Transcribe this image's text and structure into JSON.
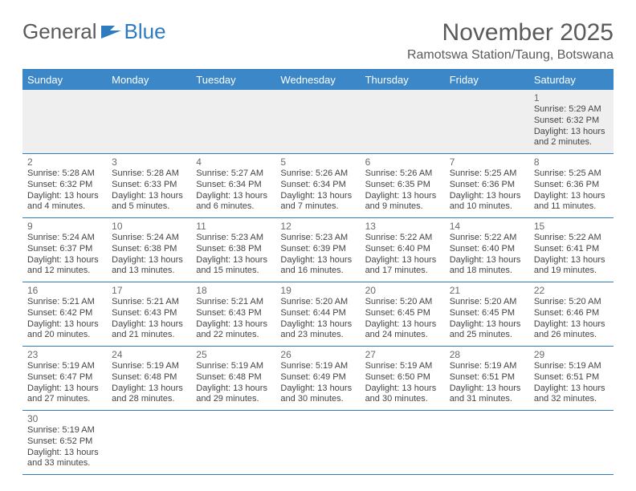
{
  "brand": {
    "part1": "General",
    "part2": "Blue"
  },
  "title": "November 2025",
  "location": "Ramotswa Station/Taung, Botswana",
  "colors": {
    "header_bg": "#3b87c8",
    "header_text": "#ffffff",
    "rule": "#2f7bbf",
    "text": "#333333",
    "muted": "#5a5a5a",
    "filler": "#efefef"
  },
  "weekdays": [
    "Sunday",
    "Monday",
    "Tuesday",
    "Wednesday",
    "Thursday",
    "Friday",
    "Saturday"
  ],
  "weeks": [
    [
      null,
      null,
      null,
      null,
      null,
      null,
      {
        "n": "1",
        "sr": "Sunrise: 5:29 AM",
        "ss": "Sunset: 6:32 PM",
        "dl": "Daylight: 13 hours and 2 minutes."
      }
    ],
    [
      {
        "n": "2",
        "sr": "Sunrise: 5:28 AM",
        "ss": "Sunset: 6:32 PM",
        "dl": "Daylight: 13 hours and 4 minutes."
      },
      {
        "n": "3",
        "sr": "Sunrise: 5:28 AM",
        "ss": "Sunset: 6:33 PM",
        "dl": "Daylight: 13 hours and 5 minutes."
      },
      {
        "n": "4",
        "sr": "Sunrise: 5:27 AM",
        "ss": "Sunset: 6:34 PM",
        "dl": "Daylight: 13 hours and 6 minutes."
      },
      {
        "n": "5",
        "sr": "Sunrise: 5:26 AM",
        "ss": "Sunset: 6:34 PM",
        "dl": "Daylight: 13 hours and 7 minutes."
      },
      {
        "n": "6",
        "sr": "Sunrise: 5:26 AM",
        "ss": "Sunset: 6:35 PM",
        "dl": "Daylight: 13 hours and 9 minutes."
      },
      {
        "n": "7",
        "sr": "Sunrise: 5:25 AM",
        "ss": "Sunset: 6:36 PM",
        "dl": "Daylight: 13 hours and 10 minutes."
      },
      {
        "n": "8",
        "sr": "Sunrise: 5:25 AM",
        "ss": "Sunset: 6:36 PM",
        "dl": "Daylight: 13 hours and 11 minutes."
      }
    ],
    [
      {
        "n": "9",
        "sr": "Sunrise: 5:24 AM",
        "ss": "Sunset: 6:37 PM",
        "dl": "Daylight: 13 hours and 12 minutes."
      },
      {
        "n": "10",
        "sr": "Sunrise: 5:24 AM",
        "ss": "Sunset: 6:38 PM",
        "dl": "Daylight: 13 hours and 13 minutes."
      },
      {
        "n": "11",
        "sr": "Sunrise: 5:23 AM",
        "ss": "Sunset: 6:38 PM",
        "dl": "Daylight: 13 hours and 15 minutes."
      },
      {
        "n": "12",
        "sr": "Sunrise: 5:23 AM",
        "ss": "Sunset: 6:39 PM",
        "dl": "Daylight: 13 hours and 16 minutes."
      },
      {
        "n": "13",
        "sr": "Sunrise: 5:22 AM",
        "ss": "Sunset: 6:40 PM",
        "dl": "Daylight: 13 hours and 17 minutes."
      },
      {
        "n": "14",
        "sr": "Sunrise: 5:22 AM",
        "ss": "Sunset: 6:40 PM",
        "dl": "Daylight: 13 hours and 18 minutes."
      },
      {
        "n": "15",
        "sr": "Sunrise: 5:22 AM",
        "ss": "Sunset: 6:41 PM",
        "dl": "Daylight: 13 hours and 19 minutes."
      }
    ],
    [
      {
        "n": "16",
        "sr": "Sunrise: 5:21 AM",
        "ss": "Sunset: 6:42 PM",
        "dl": "Daylight: 13 hours and 20 minutes."
      },
      {
        "n": "17",
        "sr": "Sunrise: 5:21 AM",
        "ss": "Sunset: 6:43 PM",
        "dl": "Daylight: 13 hours and 21 minutes."
      },
      {
        "n": "18",
        "sr": "Sunrise: 5:21 AM",
        "ss": "Sunset: 6:43 PM",
        "dl": "Daylight: 13 hours and 22 minutes."
      },
      {
        "n": "19",
        "sr": "Sunrise: 5:20 AM",
        "ss": "Sunset: 6:44 PM",
        "dl": "Daylight: 13 hours and 23 minutes."
      },
      {
        "n": "20",
        "sr": "Sunrise: 5:20 AM",
        "ss": "Sunset: 6:45 PM",
        "dl": "Daylight: 13 hours and 24 minutes."
      },
      {
        "n": "21",
        "sr": "Sunrise: 5:20 AM",
        "ss": "Sunset: 6:45 PM",
        "dl": "Daylight: 13 hours and 25 minutes."
      },
      {
        "n": "22",
        "sr": "Sunrise: 5:20 AM",
        "ss": "Sunset: 6:46 PM",
        "dl": "Daylight: 13 hours and 26 minutes."
      }
    ],
    [
      {
        "n": "23",
        "sr": "Sunrise: 5:19 AM",
        "ss": "Sunset: 6:47 PM",
        "dl": "Daylight: 13 hours and 27 minutes."
      },
      {
        "n": "24",
        "sr": "Sunrise: 5:19 AM",
        "ss": "Sunset: 6:48 PM",
        "dl": "Daylight: 13 hours and 28 minutes."
      },
      {
        "n": "25",
        "sr": "Sunrise: 5:19 AM",
        "ss": "Sunset: 6:48 PM",
        "dl": "Daylight: 13 hours and 29 minutes."
      },
      {
        "n": "26",
        "sr": "Sunrise: 5:19 AM",
        "ss": "Sunset: 6:49 PM",
        "dl": "Daylight: 13 hours and 30 minutes."
      },
      {
        "n": "27",
        "sr": "Sunrise: 5:19 AM",
        "ss": "Sunset: 6:50 PM",
        "dl": "Daylight: 13 hours and 30 minutes."
      },
      {
        "n": "28",
        "sr": "Sunrise: 5:19 AM",
        "ss": "Sunset: 6:51 PM",
        "dl": "Daylight: 13 hours and 31 minutes."
      },
      {
        "n": "29",
        "sr": "Sunrise: 5:19 AM",
        "ss": "Sunset: 6:51 PM",
        "dl": "Daylight: 13 hours and 32 minutes."
      }
    ],
    [
      {
        "n": "30",
        "sr": "Sunrise: 5:19 AM",
        "ss": "Sunset: 6:52 PM",
        "dl": "Daylight: 13 hours and 33 minutes."
      },
      null,
      null,
      null,
      null,
      null,
      null
    ]
  ]
}
